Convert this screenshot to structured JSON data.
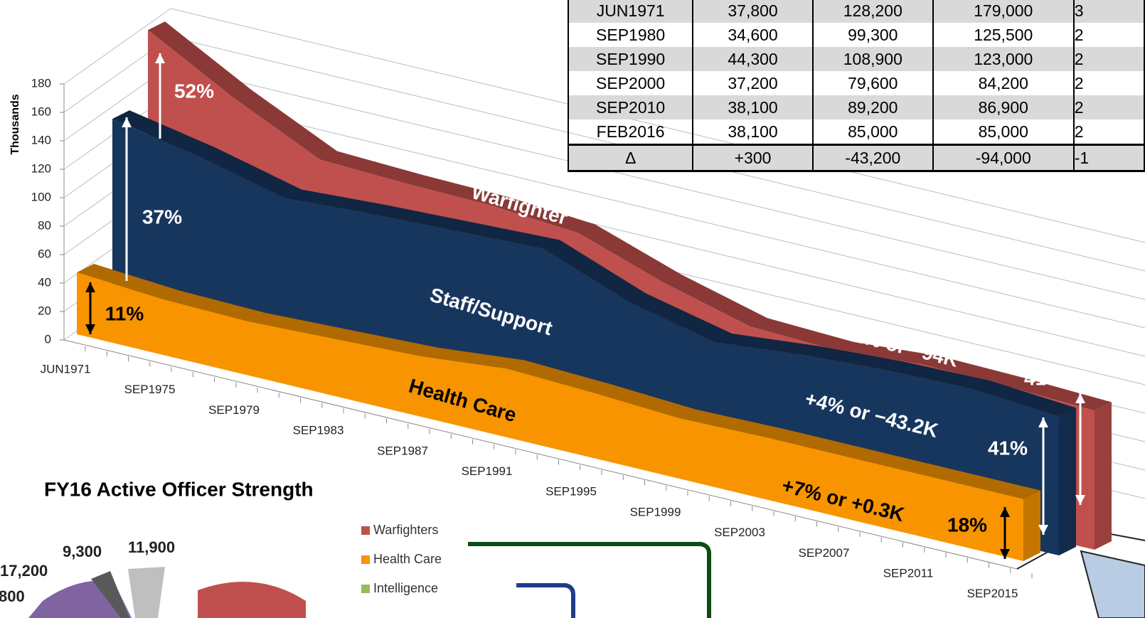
{
  "chart_data": [
    {
      "type": "area3d",
      "y_label": "Thousands",
      "categories": [
        "JUN1971",
        "SEP1975",
        "SEP1979",
        "SEP1983",
        "SEP1987",
        "SEP1991",
        "SEP1995",
        "SEP1999",
        "SEP2003",
        "SEP2007",
        "SEP2011",
        "SEP2015"
      ],
      "series": [
        {
          "name": "Health Care",
          "color": "#f79400",
          "values": [
            37.8,
            34,
            33,
            35,
            37,
            42,
            40,
            37,
            38,
            38,
            38,
            38
          ]
        },
        {
          "name": "Staff/Support",
          "color": "#17365d",
          "values": [
            128.2,
            118,
            105,
            108,
            110,
            112,
            92,
            80,
            85,
            88,
            89,
            85
          ]
        },
        {
          "name": "Warfighter",
          "color": "#c0504d",
          "values": [
            179,
            150,
            125,
            123,
            122,
            118,
            100,
            86,
            84,
            88,
            87,
            85
          ]
        }
      ],
      "ylim": [
        0,
        180
      ],
      "yticks": [
        0,
        20,
        40,
        60,
        80,
        100,
        120,
        140,
        160,
        180
      ],
      "grid": true,
      "annotations": [
        "52%",
        "37%",
        "11%",
        "−11% or −94K",
        "+4% or −43.2K",
        "+7% or +0.3K",
        "41%",
        "41%",
        "18%"
      ]
    },
    {
      "type": "pie",
      "title": "FY16 Active Officer Strength",
      "slices": [
        {
          "value": 17200,
          "value_label": "17,200",
          "color": "#8064a2"
        },
        {
          "value": 9300,
          "value_label": "9,300",
          "color": "#595959"
        },
        {
          "value": 11900,
          "value_label": "11,900",
          "color": "#bfbfbf"
        }
      ],
      "cut_label": "800",
      "legend": [
        {
          "name": "Warfighters",
          "color": "#c0504d"
        },
        {
          "name": "Health Care",
          "color": "#f79400"
        },
        {
          "name": "Intelligence",
          "color": "#9bbb59"
        }
      ]
    }
  ],
  "table": {
    "rows": [
      [
        "JUN1971",
        "37,800",
        "128,200",
        "179,000",
        "3"
      ],
      [
        "SEP1980",
        "34,600",
        "99,300",
        "125,500",
        "2"
      ],
      [
        "SEP1990",
        "44,300",
        "108,900",
        "123,000",
        "2"
      ],
      [
        "SEP2000",
        "37,200",
        "79,600",
        "84,200",
        "2"
      ],
      [
        "SEP2010",
        "38,100",
        "89,200",
        "86,900",
        "2"
      ],
      [
        "FEB2016",
        "38,100",
        "85,000",
        "85,000",
        "2"
      ],
      [
        "Δ",
        "+300",
        "-43,200",
        "-94,000",
        "-1"
      ]
    ]
  }
}
